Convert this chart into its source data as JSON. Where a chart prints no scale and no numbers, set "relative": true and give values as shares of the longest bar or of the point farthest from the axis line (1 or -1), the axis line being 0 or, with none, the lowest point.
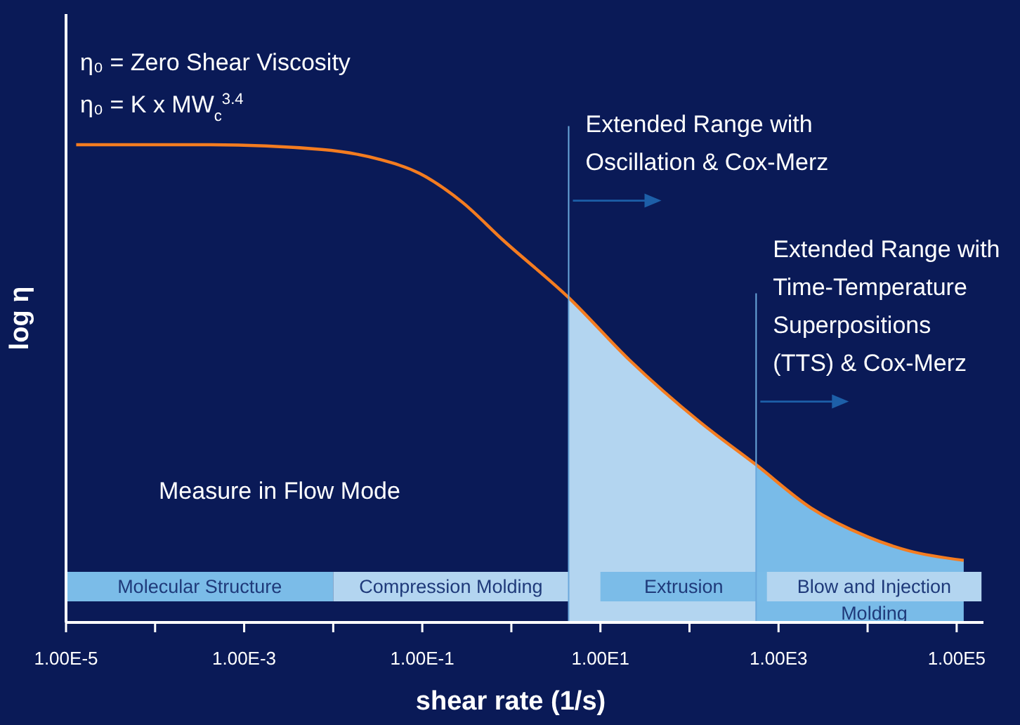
{
  "chart_data": {
    "type": "line",
    "relative": true,
    "log": "x",
    "xlabel": "shear rate (1/s)",
    "ylabel": "log η",
    "xlim": [
      1e-05,
      200000
    ],
    "xticks": [
      {
        "value": 1e-05,
        "label": "1.00E-5"
      },
      {
        "value": 0.0001,
        "label": null
      },
      {
        "value": 0.001,
        "label": "1.00E-3"
      },
      {
        "value": 0.01,
        "label": null
      },
      {
        "value": 0.1,
        "label": "1.00E-1"
      },
      {
        "value": 1,
        "label": null
      },
      {
        "value": 10,
        "label": "1.00E1"
      },
      {
        "value": 100,
        "label": null
      },
      {
        "value": 1000,
        "label": "1.00E3"
      },
      {
        "value": 10000,
        "label": null
      },
      {
        "value": 100000,
        "label": "1.00E5"
      }
    ],
    "series": [
      {
        "type": "area",
        "color": "#b3d5f0",
        "x": [
          4.4,
          21,
          130,
          560
        ],
        "values": [
          0.68,
          0.55,
          0.42,
          0.33
        ]
      },
      {
        "type": "area",
        "color": "#79bbe8",
        "x": [
          560,
          2300,
          9800,
          29000,
          120000
        ],
        "values": [
          0.33,
          0.24,
          0.18,
          0.15,
          0.13
        ]
      },
      {
        "type": "line",
        "color": "#f47c20",
        "x": [
          1.3e-05,
          0.00042,
          0.0074,
          0.032,
          0.093,
          0.28,
          0.81,
          4.4,
          21,
          130,
          560,
          2300,
          9800,
          29000,
          120000
        ],
        "values": [
          1.0,
          1.0,
          0.99,
          0.97,
          0.94,
          0.88,
          0.8,
          0.68,
          0.55,
          0.42,
          0.33,
          0.24,
          0.18,
          0.15,
          0.13
        ]
      }
    ],
    "ref_lines": [
      {
        "axis": "x",
        "value": 4.4,
        "label": "Extended Range with\nOscillation & Cox-Merz",
        "color": "#6aa8dc"
      },
      {
        "axis": "x",
        "value": 560,
        "label": "Extended Range with\nTime-Temperature\nSuperpositions\n(TTS) & Cox-Merz",
        "color": "#6aa8dc"
      }
    ],
    "bands": [
      {
        "axis": "x",
        "from": 1e-05,
        "to": 0.01,
        "label": "Molecular Structure",
        "color": "#7bbce8"
      },
      {
        "axis": "x",
        "from": 0.01,
        "to": 4.4,
        "label": "Compression Molding",
        "color": "#b3d5f0"
      },
      {
        "axis": "x",
        "from": 10,
        "to": 740,
        "label": "Extrusion",
        "color": "#7bbce8"
      },
      {
        "axis": "x",
        "from": 740,
        "to": 190000,
        "label": "Blow and Injection Molding",
        "color": "#b3d5f0"
      }
    ],
    "annotations": [
      "η₀ = Zero Shear Viscosity",
      "η₀ = K x MW$_{c}$$^{3.4}$",
      "Measure in Flow Mode"
    ]
  }
}
